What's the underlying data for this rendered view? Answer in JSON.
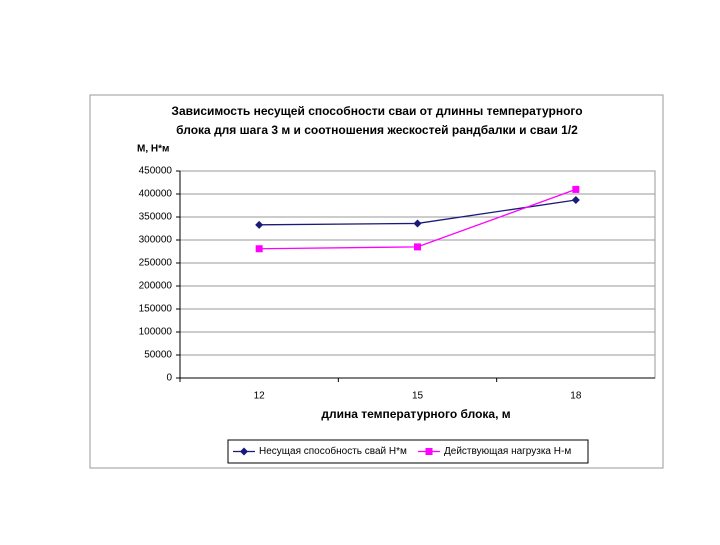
{
  "chart_data": {
    "type": "line",
    "title": [
      "Зависимость несущей способности сваи от длинны температурного",
      "блока для шага 3 м и соотношения жескостей рандбалки и сваи 1/2"
    ],
    "y_label": "М, Н*м",
    "x_label": "длина температурного блока, м",
    "categories": [
      "12",
      "15",
      "18"
    ],
    "series": [
      {
        "name": "Несущая способность свай Н*м",
        "color": "#1a1a7a",
        "marker": "diamond",
        "values": [
          333000,
          336000,
          387000
        ]
      },
      {
        "name": "Действующая нагрузка Н-м",
        "color": "#ff00ff",
        "marker": "square",
        "values": [
          281000,
          285000,
          410000
        ]
      }
    ],
    "ylim": [
      0,
      450000
    ],
    "yticks": [
      0,
      50000,
      100000,
      150000,
      200000,
      250000,
      300000,
      350000,
      400000,
      450000
    ],
    "grid": true,
    "legend": "bottom"
  }
}
